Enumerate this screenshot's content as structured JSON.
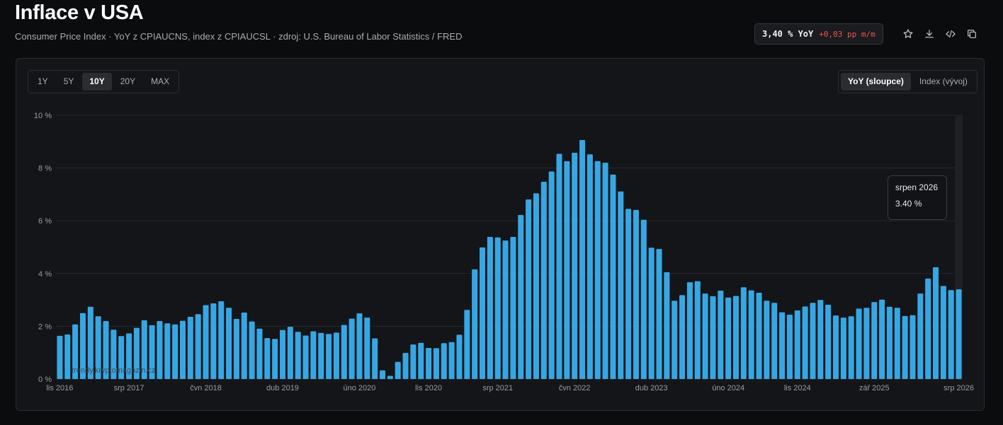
{
  "header": {
    "title": "Inflace v USA",
    "subtitle": "Consumer Price Index · YoY z CPIAUCNS, index z CPIAUCSL · zdroj: U.S. Bureau of Labor Statistics / FRED",
    "badge_value": "3,40 % YoY",
    "badge_delta": "+0,03 pp m/m"
  },
  "toolbar": {
    "icons": [
      "star-icon",
      "download-icon",
      "code-icon",
      "copy-icon"
    ]
  },
  "range_buttons": [
    {
      "label": "1Y",
      "active": false
    },
    {
      "label": "5Y",
      "active": false
    },
    {
      "label": "10Y",
      "active": true
    },
    {
      "label": "20Y",
      "active": false
    },
    {
      "label": "MAX",
      "active": false
    }
  ],
  "mode_buttons": [
    {
      "label": "YoY (sloupce)",
      "active": true
    },
    {
      "label": "Index (vývoj)",
      "active": false
    }
  ],
  "tooltip": {
    "label": "srpen 2026",
    "value": "3.40 %"
  },
  "watermark": "trendy.kryptomagazin.cz",
  "colors": {
    "bar": "#37a7e3",
    "grid": "#26282d",
    "negative": "#ef5350"
  },
  "chart_data": {
    "type": "bar",
    "ylim": [
      0,
      10
    ],
    "yticks": [
      "0 %",
      "2 %",
      "4 %",
      "6 %",
      "8 %",
      "10 %"
    ],
    "ytick_values": [
      0,
      2,
      4,
      6,
      8,
      10
    ],
    "xtick_labels": [
      "lis 2016",
      "srp 2017",
      "čvn 2018",
      "dub 2019",
      "úno 2020",
      "lis 2020",
      "srp 2021",
      "čvn 2022",
      "dub 2023",
      "úno 2024",
      "lis 2024",
      "zář 2025",
      "srp 2026"
    ],
    "xtick_indices": [
      0,
      9,
      19,
      29,
      39,
      48,
      57,
      67,
      77,
      87,
      96,
      106,
      117
    ],
    "start": "2016-11",
    "end": "2026-08",
    "values": [
      1.64,
      1.69,
      2.07,
      2.5,
      2.74,
      2.38,
      2.2,
      1.87,
      1.63,
      1.73,
      1.94,
      2.23,
      2.04,
      2.2,
      2.11,
      2.07,
      2.21,
      2.36,
      2.46,
      2.8,
      2.87,
      2.95,
      2.7,
      2.28,
      2.52,
      2.18,
      1.91,
      1.55,
      1.52,
      1.86,
      1.98,
      1.79,
      1.65,
      1.81,
      1.75,
      1.71,
      1.76,
      2.05,
      2.29,
      2.49,
      2.33,
      1.54,
      0.33,
      0.12,
      0.65,
      0.99,
      1.31,
      1.37,
      1.18,
      1.17,
      1.36,
      1.4,
      1.68,
      2.62,
      4.16,
      4.99,
      5.39,
      5.37,
      5.25,
      5.39,
      6.22,
      6.81,
      7.04,
      7.48,
      7.87,
      8.54,
      8.26,
      8.58,
      9.06,
      8.52,
      8.26,
      8.2,
      7.75,
      7.11,
      6.45,
      6.41,
      6.04,
      4.98,
      4.93,
      4.05,
      2.97,
      3.18,
      3.67,
      3.71,
      3.24,
      3.14,
      3.35,
      3.09,
      3.15,
      3.48,
      3.36,
      3.27,
      2.97,
      2.89,
      2.53,
      2.44,
      2.6,
      2.75,
      2.89,
      3.0,
      2.82,
      2.41,
      2.33,
      2.38,
      2.67,
      2.7,
      2.92,
      3.01,
      2.74,
      2.7,
      2.39,
      2.42,
      3.24,
      3.81,
      4.24,
      3.53,
      3.37,
      3.4
    ]
  }
}
